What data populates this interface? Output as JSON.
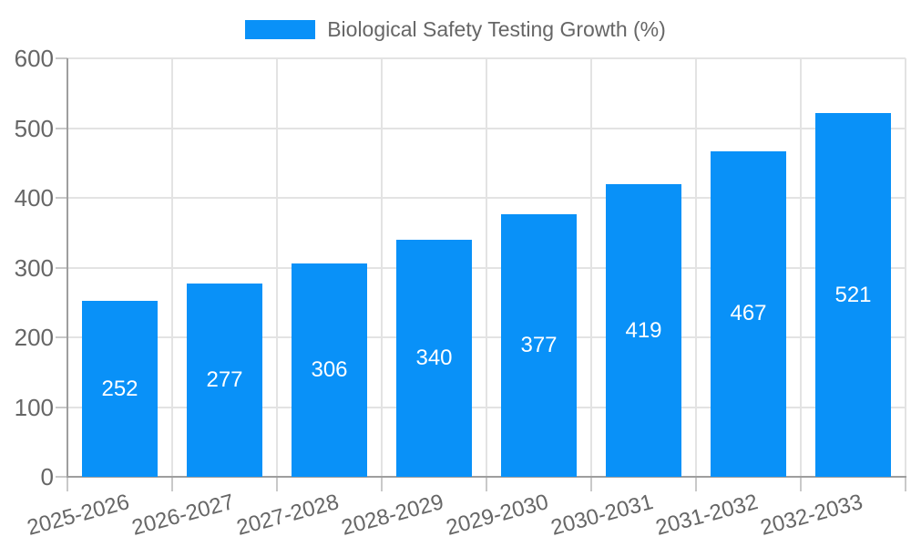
{
  "legend": {
    "label": "Biological Safety Testing Growth (%)"
  },
  "colors": {
    "bar": "#0991f8",
    "text": "#666666",
    "value_label": "#ffffff",
    "grid": "#e3e3e3",
    "tick": "#c9c9c9",
    "axis": "#9e9e9e",
    "background": "#ffffff"
  },
  "chart_data": {
    "type": "bar",
    "title": "Biological Safety Testing Growth (%)",
    "categories": [
      "2025-2026",
      "2026-2027",
      "2027-2028",
      "2028-2029",
      "2029-2030",
      "2030-2031",
      "2031-2032",
      "2032-2033"
    ],
    "values": [
      252,
      277,
      306,
      340,
      377,
      419,
      467,
      521
    ],
    "xlabel": "",
    "ylabel": "",
    "ylim": [
      0,
      600
    ],
    "ytick_step": 100,
    "yticks": [
      0,
      100,
      200,
      300,
      400,
      500,
      600
    ],
    "grid": true,
    "legend_position": "top",
    "value_labels": "inside-center",
    "bar_color": "#0991f8"
  }
}
